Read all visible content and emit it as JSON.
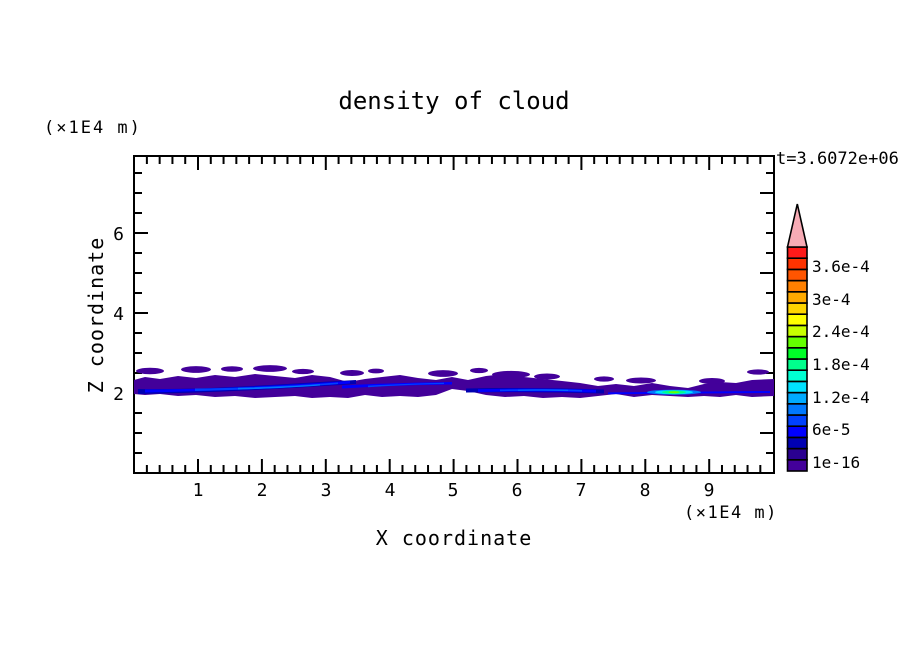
{
  "figure": {
    "title": "density of cloud",
    "time_label": "t=3.6072e+06",
    "y_unit_label": "(×1E4 m)",
    "x_unit_label": "(×1E4 m)",
    "x_axis_label": "X coordinate",
    "y_axis_label": "Z coordinate"
  },
  "axes": {
    "x": {
      "range": [
        0,
        10
      ],
      "tick_labels": [
        "1",
        "2",
        "3",
        "4",
        "5",
        "6",
        "7",
        "8",
        "9"
      ]
    },
    "y": {
      "range": [
        0,
        7.9
      ],
      "tick_labels": [
        "2",
        "4",
        "6"
      ]
    }
  },
  "colorbar": {
    "labels": [
      "3.6e-4",
      "3e-4",
      "2.4e-4",
      "1.8e-4",
      "1.2e-4",
      "6e-5",
      "1e-16"
    ],
    "segments": [
      "#43009a",
      "#2a0090",
      "#0000b2",
      "#0000ff",
      "#0041ff",
      "#0078ff",
      "#00aaff",
      "#00e1ff",
      "#00ffd2",
      "#00ff8c",
      "#00ff28",
      "#64ff00",
      "#c8ff00",
      "#ffff00",
      "#ffd500",
      "#ffaa00",
      "#ff8000",
      "#ff5500",
      "#ff3300",
      "#ff1a1a"
    ],
    "arrow_color": "#f7abb5"
  },
  "palette": {
    "purple": "#43009a",
    "navy": "#0000b2",
    "blue": "#0000ff",
    "blue2": "#0041ff",
    "blue3": "#0078ff",
    "sky": "#00aaff",
    "cyan": "#00e1ff",
    "turquoise": "#00ffd2",
    "spring": "#00ff8c",
    "chartreuse": "#64ff00",
    "ink": "#000000"
  },
  "chart_data": {
    "type": "heatmap",
    "title": "density of cloud",
    "xlabel": "X coordinate",
    "ylabel": "Z coordinate",
    "x_unit": "(×1E4 m)",
    "y_unit": "(×1E4 m)",
    "time_annotation": "t=3.6072e+06",
    "xlim": [
      0,
      10
    ],
    "ylim": [
      0,
      7.9
    ],
    "grid": false,
    "legend_position": "right-colorbar-with-overflow-arrow",
    "contour_levels": [
      "1e-16",
      "2e-5",
      "4e-5",
      "6e-5",
      "8e-5",
      "1e-4",
      "1.2e-4",
      "1.4e-4",
      "1.6e-4",
      "1.8e-4",
      "2e-4",
      "2.2e-4",
      "2.4e-4",
      "2.6e-4",
      "2.8e-4",
      "3e-4",
      "3.2e-4",
      "3.4e-4",
      "3.6e-4",
      "3.8e-4"
    ],
    "labeled_levels": [
      "1e-16",
      "6e-5",
      "1.2e-4",
      "1.8e-4",
      "2.4e-4",
      "3e-4",
      "3.6e-4"
    ],
    "features": [
      {
        "name": "main-cloud-band",
        "description": "thin quasi-horizontal cloud layer spanning full x range",
        "x_extent": [
          0,
          10
        ],
        "z_extent": [
          1.95,
          2.45
        ],
        "value_range": "1e-16 to 2e-5"
      },
      {
        "name": "band-core-streaks",
        "description": "elongated higher-density streaks inside band",
        "z_center": 2.05,
        "x_segments": [
          [
            0.1,
            3.4
          ],
          [
            3.3,
            5.0
          ],
          [
            5.2,
            7.3
          ],
          [
            7.4,
            10.0
          ]
        ],
        "value_range": "2e-5 to 1.2e-4"
      },
      {
        "name": "local-maximum",
        "description": "bright cyan-green core",
        "x": 8.4,
        "z": 2.0,
        "value": "~1.6e-4 to 2.2e-4"
      },
      {
        "name": "detached-puffs",
        "description": "small purple cloud fragments above main band",
        "z_range": [
          2.4,
          2.7
        ],
        "value_range": "<= 2e-5"
      }
    ]
  }
}
